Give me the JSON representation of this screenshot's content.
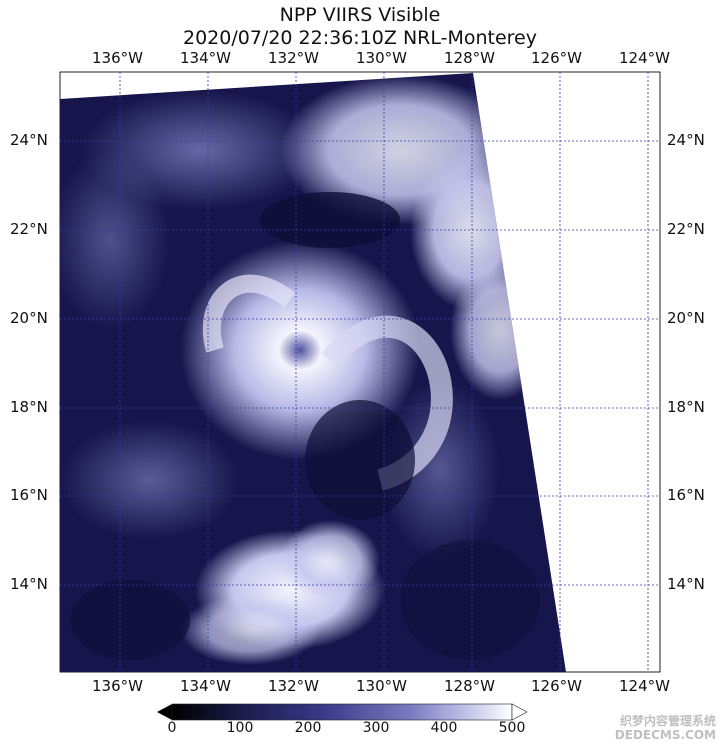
{
  "title": {
    "line1": "NPP VIIRS Visible",
    "line2": "2020/07/20 22:36:10Z NRL-Monterey"
  },
  "axes": {
    "lon_labels": [
      "136°W",
      "134°W",
      "132°W",
      "130°W",
      "128°W",
      "126°W",
      "124°W"
    ],
    "lat_labels": [
      "24°N",
      "22°N",
      "20°N",
      "18°N",
      "16°N",
      "14°N"
    ]
  },
  "colorbar": {
    "ticks": [
      "0",
      "100",
      "200",
      "300",
      "400",
      "500"
    ],
    "colors": [
      "#000000",
      "#1a1a4a",
      "#3a3a8a",
      "#7a7ac0",
      "#c8c8ec",
      "#ffffff"
    ]
  },
  "colors": {
    "ocean": "#16164c",
    "cloud_bright": "#f2f2fc",
    "grid": "#3b3bb0"
  },
  "watermark": {
    "line1": "织梦内容管理系统",
    "line2": "DEDECMS.COM"
  }
}
